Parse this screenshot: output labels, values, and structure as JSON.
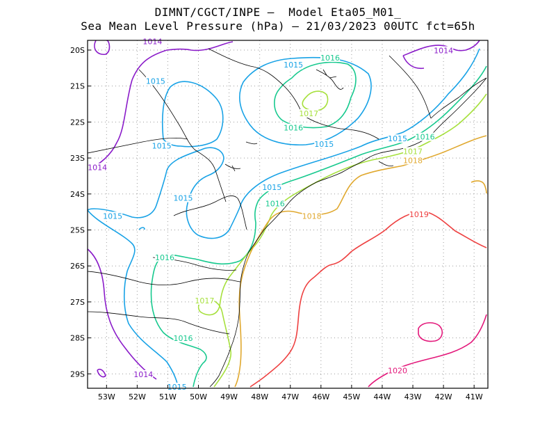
{
  "title_line1": "DIMNT/CGCT/INPE –  Model Eta05_M01_",
  "title_line2": "Sea Mean Level Pressure (hPa) – 21/03/2023 00UTC fct=65h",
  "lon_ticks": [
    "53W",
    "52W",
    "51W",
    "50W",
    "49W",
    "48W",
    "47W",
    "46W",
    "45W",
    "44W",
    "43W",
    "42W",
    "41W"
  ],
  "lat_ticks": [
    "20S",
    "21S",
    "22S",
    "23S",
    "24S",
    "25S",
    "26S",
    "27S",
    "28S",
    "29S"
  ],
  "colors": {
    "1014": "#8a1bc9",
    "1015": "#18a2e6",
    "1016": "#17c98e",
    "1017": "#a6e03c",
    "1018": "#e0a82e",
    "1019": "#ee4040",
    "1020": "#e3177a",
    "coast": "#000000",
    "grid": "#9a9a9a"
  },
  "contour_labels": [
    {
      "text": "1014",
      "level": "1014",
      "lon": -51.5,
      "lat": -19.8
    },
    {
      "text": "1014",
      "level": "1014",
      "lon": -42.0,
      "lat": -20.05
    },
    {
      "text": "1014",
      "level": "1014",
      "lon": -53.3,
      "lat": -23.3
    },
    {
      "text": "1014",
      "level": "1014",
      "lon": -51.8,
      "lat": -29.05
    },
    {
      "text": "1015",
      "level": "1015",
      "lon": -46.9,
      "lat": -20.45
    },
    {
      "text": "1015",
      "level": "1015",
      "lon": -51.4,
      "lat": -20.9
    },
    {
      "text": "1015",
      "level": "1015",
      "lon": -51.2,
      "lat": -22.7
    },
    {
      "text": "1015",
      "level": "1015",
      "lon": -45.9,
      "lat": -22.65
    },
    {
      "text": "1015",
      "level": "1015",
      "lon": -43.5,
      "lat": -22.5
    },
    {
      "text": "1015",
      "level": "1015",
      "lon": -47.6,
      "lat": -23.85
    },
    {
      "text": "1015",
      "level": "1015",
      "lon": -50.5,
      "lat": -24.15
    },
    {
      "text": "1015",
      "level": "1015",
      "lon": -52.8,
      "lat": -24.65
    },
    {
      "text": "1015",
      "level": "1015",
      "lon": -50.7,
      "lat": -29.4
    },
    {
      "text": "1016",
      "level": "1016",
      "lon": -45.7,
      "lat": -20.25
    },
    {
      "text": "1016",
      "level": "1016",
      "lon": -46.9,
      "lat": -22.2
    },
    {
      "text": "1016",
      "level": "1016",
      "lon": -42.6,
      "lat": -22.45
    },
    {
      "text": "1016",
      "level": "1016",
      "lon": -47.5,
      "lat": -24.3
    },
    {
      "text": "1016",
      "level": "1016",
      "lon": -51.1,
      "lat": -25.8
    },
    {
      "text": "1016",
      "level": "1016",
      "lon": -50.5,
      "lat": -28.05
    },
    {
      "text": "1017",
      "level": "1017",
      "lon": -46.4,
      "lat": -21.8
    },
    {
      "text": "1017",
      "level": "1017",
      "lon": -43.0,
      "lat": -22.85
    },
    {
      "text": "1017",
      "level": "1017",
      "lon": -49.8,
      "lat": -27.0
    },
    {
      "text": "1018",
      "level": "1018",
      "lon": -43.0,
      "lat": -23.1
    },
    {
      "text": "1018",
      "level": "1018",
      "lon": -46.3,
      "lat": -24.65
    },
    {
      "text": "1019",
      "level": "1019",
      "lon": -42.8,
      "lat": -24.6
    },
    {
      "text": "1020",
      "level": "1020",
      "lon": -43.5,
      "lat": -28.95
    }
  ]
}
